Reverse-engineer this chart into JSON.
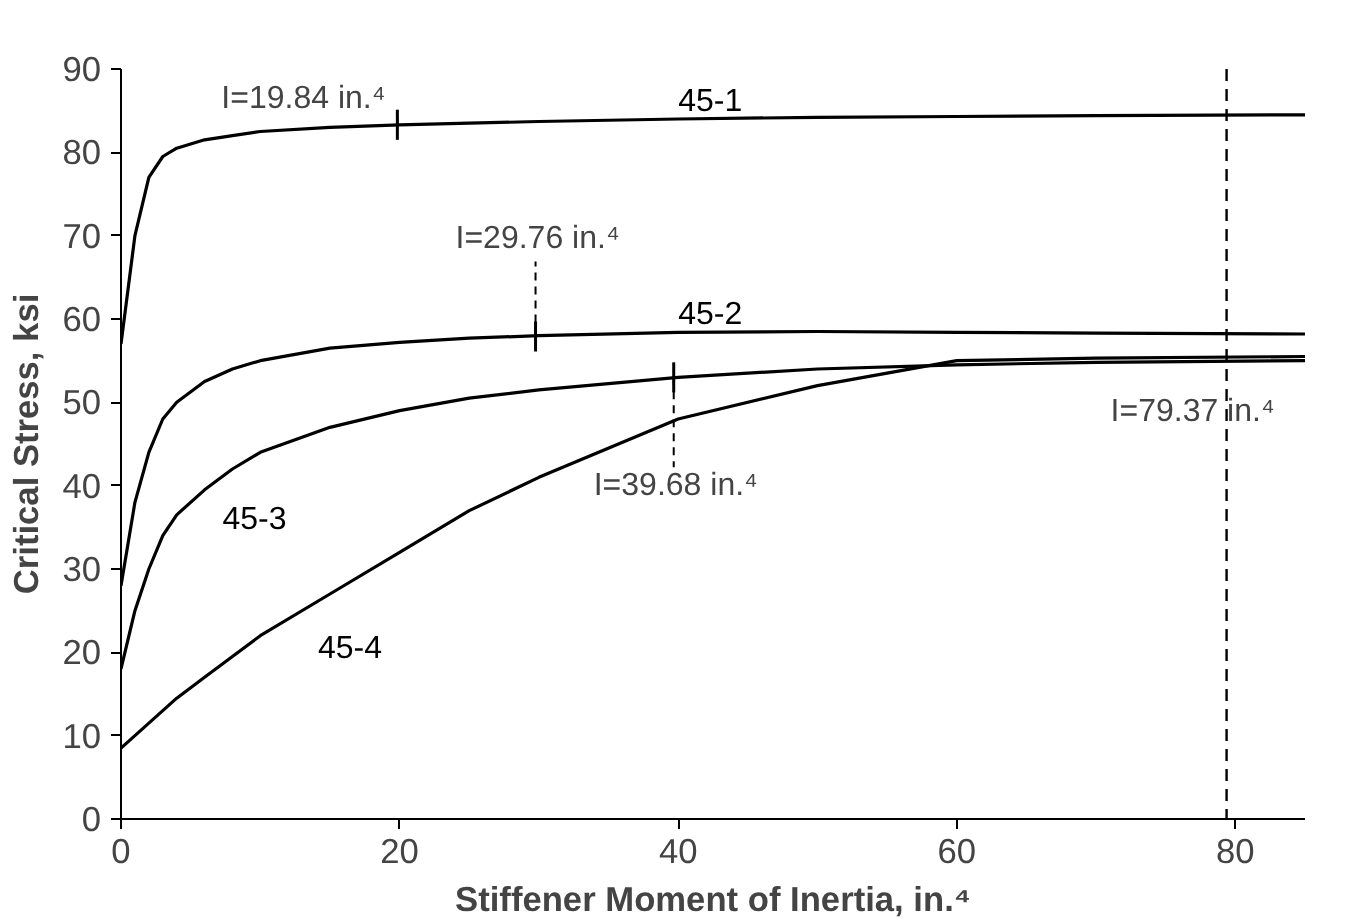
{
  "chart_data": {
    "type": "line",
    "xlabel": "Stiffener Moment of Inertia, in.⁴",
    "ylabel": "Critical Stress, ksi",
    "xlim": [
      0,
      85
    ],
    "ylim": [
      0,
      90
    ],
    "xticks": [
      0,
      20,
      40,
      60,
      80
    ],
    "yticks": [
      0,
      10,
      20,
      30,
      40,
      50,
      60,
      70,
      80,
      90
    ],
    "x": [
      0,
      1,
      2,
      3,
      4,
      6,
      8,
      10,
      15,
      20,
      25,
      30,
      40,
      50,
      60,
      70,
      85
    ],
    "series": [
      {
        "name": "45-1",
        "color": "#000000",
        "values": [
          57,
          70,
          77,
          79.5,
          80.5,
          81.5,
          82,
          82.5,
          83,
          83.3,
          83.5,
          83.7,
          84,
          84.2,
          84.3,
          84.4,
          84.5
        ]
      },
      {
        "name": "45-2",
        "color": "#000000",
        "values": [
          28,
          38,
          44,
          48,
          50,
          52.5,
          54,
          55,
          56.5,
          57.2,
          57.7,
          58,
          58.4,
          58.5,
          58.4,
          58.3,
          58.2
        ]
      },
      {
        "name": "45-3",
        "color": "#000000",
        "values": [
          18,
          25,
          30,
          34,
          36.5,
          39.5,
          42,
          44,
          47,
          49,
          50.5,
          51.5,
          53,
          54,
          54.5,
          54.8,
          55
        ]
      },
      {
        "name": "45-4",
        "color": "#000000",
        "values": [
          8.5,
          10,
          11.5,
          13,
          14.5,
          17,
          19.5,
          22,
          27,
          32,
          37,
          41,
          48,
          52,
          55,
          55.3,
          55.5
        ]
      }
    ],
    "annotations": [
      {
        "text": "I=19.84 in.⁴",
        "x": 19.84,
        "y": 83.3
      },
      {
        "text": "I=29.76 in.⁴",
        "x": 29.76,
        "y": 57.9
      },
      {
        "text": "I=39.68 in.⁴",
        "x": 39.68,
        "y": 53
      }
    ],
    "ref_lines": [
      {
        "axis": "x",
        "value": 79.37,
        "label": "I=79.37 in.⁴",
        "color": "#000000",
        "line_style": "dashed"
      }
    ],
    "grid": false,
    "marker": "none",
    "line_style": "solid"
  }
}
